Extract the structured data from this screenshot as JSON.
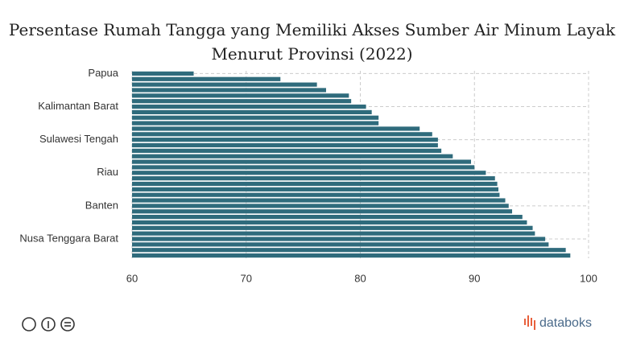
{
  "chart_data": {
    "type": "barh",
    "title": "Persentase Rumah Tangga yang Memiliki Akses Sumber Air Minum Layak Menurut Provinsi (2022)",
    "categories": [
      "Papua",
      null,
      null,
      null,
      null,
      null,
      "Kalimantan Barat",
      null,
      null,
      null,
      null,
      null,
      "Sulawesi Tengah",
      null,
      null,
      null,
      null,
      null,
      "Riau",
      null,
      null,
      null,
      null,
      null,
      "Banten",
      null,
      null,
      null,
      null,
      null,
      "Nusa Tenggara Barat",
      null,
      null,
      null
    ],
    "values": [
      65.4,
      73.0,
      76.2,
      77.0,
      79.0,
      79.2,
      80.5,
      81.0,
      81.6,
      81.6,
      85.2,
      86.3,
      86.8,
      86.8,
      87.1,
      88.1,
      89.7,
      90.0,
      91.0,
      91.8,
      92.0,
      92.1,
      92.2,
      92.7,
      93.0,
      93.3,
      94.2,
      94.6,
      95.1,
      95.3,
      96.2,
      96.5,
      98.0,
      98.4
    ],
    "color": "#2f6b7c",
    "xlim": [
      60,
      100
    ],
    "xticks": [
      60,
      70,
      80,
      90,
      100
    ],
    "grid": true
  },
  "brand": "databoks"
}
